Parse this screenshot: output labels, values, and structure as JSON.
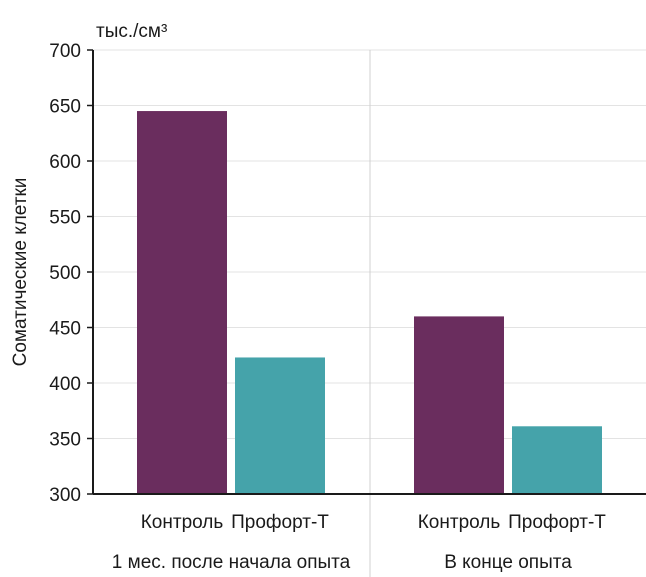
{
  "chart_data": {
    "type": "bar",
    "unit_label": "тыс./см³",
    "ylabel": "Соматические клетки",
    "ylim": [
      300,
      700
    ],
    "yticks": [
      300,
      350,
      400,
      450,
      500,
      550,
      600,
      650,
      700
    ],
    "grid": true,
    "groups": [
      {
        "label": "1 мес. после начала опыта",
        "bars": [
          {
            "category": "Контроль",
            "value": 645
          },
          {
            "category": "Профорт-Т",
            "value": 423
          }
        ]
      },
      {
        "label": "В конце опыта",
        "bars": [
          {
            "category": "Контроль",
            "value": 460
          },
          {
            "category": "Профорт-Т",
            "value": 361
          }
        ]
      }
    ],
    "colors": {
      "Контроль": "#6a2d5e",
      "Профорт-Т": "#45a3aa"
    }
  }
}
